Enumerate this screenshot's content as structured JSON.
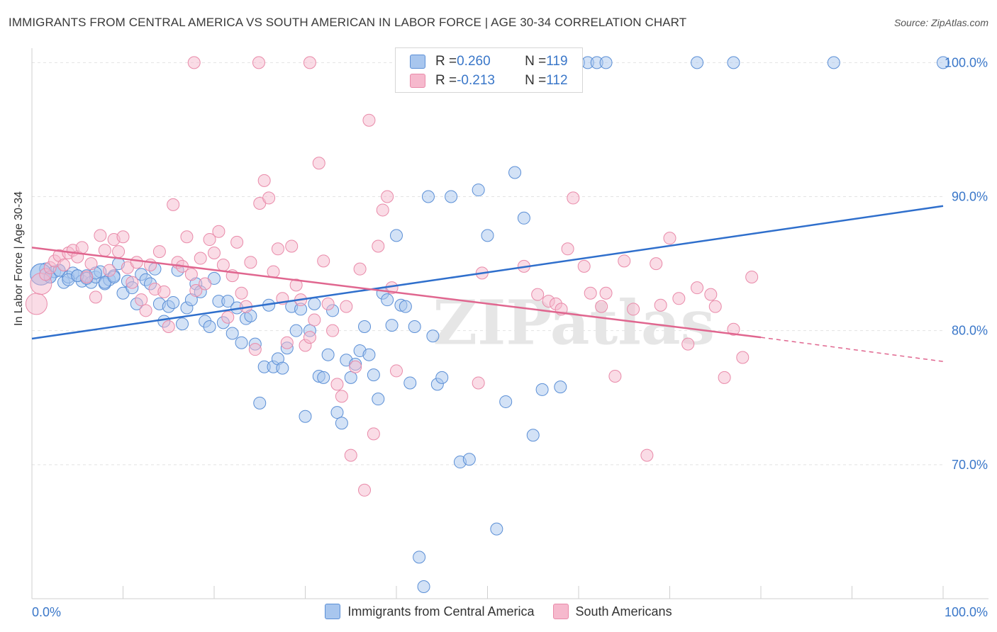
{
  "title": "IMMIGRANTS FROM CENTRAL AMERICA VS SOUTH AMERICAN IN LABOR FORCE | AGE 30-34 CORRELATION CHART",
  "source": "Source: ZipAtlas.com",
  "watermark": "ZIPatlas",
  "legend": {
    "series": [
      {
        "r_label": "R = ",
        "r_value": "0.260",
        "n_label": "N = ",
        "n_value": "119"
      },
      {
        "r_label": "R = ",
        "r_value": "-0.213",
        "n_label": "N = ",
        "n_value": "112"
      }
    ]
  },
  "bottom_legend": [
    "Immigrants from Central America",
    "South Americans"
  ],
  "colors": {
    "blue_fill": "#a8c6ee",
    "blue_stroke": "#5b8fd6",
    "blue_line": "#2f6fcc",
    "pink_fill": "#f6b9cd",
    "pink_stroke": "#e98aa9",
    "pink_line": "#e0668f",
    "axis_text": "#3a77c9",
    "grid": "#e3e3e3"
  },
  "chart_data": {
    "type": "scatter",
    "title": "IMMIGRANTS FROM CENTRAL AMERICA VS SOUTH AMERICAN IN LABOR FORCE | AGE 30-34 CORRELATION CHART",
    "ylabel": "In Labor Force | Age 30-34",
    "xlabel": "",
    "x_tick_labels": [
      "0.0%",
      "100.0%"
    ],
    "y_tick_labels": [
      "70.0%",
      "80.0%",
      "90.0%",
      "100.0%"
    ],
    "y_ticks": [
      70,
      80,
      90,
      100
    ],
    "xlim": [
      0,
      100
    ],
    "ylim": [
      60,
      101.5
    ],
    "grid": true,
    "legend_position": "top-center",
    "series": [
      {
        "name": "Immigrants from Central America",
        "color": "blue",
        "r": 0.26,
        "n": 119,
        "trend": {
          "x": [
            0,
            100
          ],
          "y": [
            79.4,
            89.3
          ]
        },
        "points": [
          [
            1,
            84.2
          ],
          [
            1.5,
            84.6
          ],
          [
            2,
            84.0
          ],
          [
            2.5,
            84.4
          ],
          [
            3,
            84.5
          ],
          [
            3.5,
            83.6
          ],
          [
            4,
            84.0
          ],
          [
            4.5,
            84.3
          ],
          [
            5,
            84.1
          ],
          [
            5.5,
            83.7
          ],
          [
            6,
            84.1
          ],
          [
            6.5,
            83.6
          ],
          [
            7,
            84.0
          ],
          [
            7.5,
            84.4
          ],
          [
            8,
            83.5
          ],
          [
            8.5,
            83.8
          ],
          [
            9,
            84.1
          ],
          [
            9.5,
            85.0
          ],
          [
            10,
            82.8
          ],
          [
            10.5,
            83.7
          ],
          [
            11,
            83.2
          ],
          [
            11.5,
            82.0
          ],
          [
            12,
            84.2
          ],
          [
            12.5,
            83.8
          ],
          [
            13,
            83.5
          ],
          [
            13.5,
            84.6
          ],
          [
            14,
            82.0
          ],
          [
            14.5,
            80.7
          ],
          [
            15,
            81.8
          ],
          [
            15.5,
            82.1
          ],
          [
            16,
            84.5
          ],
          [
            16.5,
            80.5
          ],
          [
            17,
            81.7
          ],
          [
            17.5,
            82.3
          ],
          [
            18,
            83.5
          ],
          [
            18.5,
            82.9
          ],
          [
            19,
            80.7
          ],
          [
            19.5,
            80.3
          ],
          [
            20,
            83.9
          ],
          [
            20.5,
            82.2
          ],
          [
            21,
            80.6
          ],
          [
            21.5,
            82.2
          ],
          [
            22,
            79.8
          ],
          [
            22.5,
            81.7
          ],
          [
            23,
            79.1
          ],
          [
            23.5,
            80.9
          ],
          [
            24,
            81.1
          ],
          [
            24.5,
            79.0
          ],
          [
            25,
            74.6
          ],
          [
            25.5,
            77.3
          ],
          [
            26,
            81.9
          ],
          [
            26.5,
            77.3
          ],
          [
            27,
            77.9
          ],
          [
            27.5,
            77.2
          ],
          [
            28,
            78.7
          ],
          [
            28.5,
            81.8
          ],
          [
            29,
            80.0
          ],
          [
            29.5,
            81.6
          ],
          [
            30,
            73.6
          ],
          [
            30.5,
            80.0
          ],
          [
            31,
            82.0
          ],
          [
            31.5,
            76.6
          ],
          [
            32,
            76.5
          ],
          [
            32.5,
            78.2
          ],
          [
            33,
            81.5
          ],
          [
            33.5,
            73.9
          ],
          [
            34,
            73.1
          ],
          [
            34.5,
            77.8
          ],
          [
            35,
            76.5
          ],
          [
            35.5,
            77.5
          ],
          [
            36,
            78.5
          ],
          [
            36.5,
            80.3
          ],
          [
            37,
            78.2
          ],
          [
            37.5,
            76.7
          ],
          [
            38,
            74.9
          ],
          [
            38.5,
            82.8
          ],
          [
            39,
            82.3
          ],
          [
            39.5,
            80.4
          ],
          [
            40,
            87.1
          ],
          [
            40.5,
            81.9
          ],
          [
            41,
            81.8
          ],
          [
            41.5,
            76.1
          ],
          [
            42,
            80.3
          ],
          [
            42.5,
            63.1
          ],
          [
            43,
            60.9
          ],
          [
            43.5,
            90.0
          ],
          [
            44,
            79.6
          ],
          [
            44.5,
            76.0
          ],
          [
            45,
            76.5
          ],
          [
            46,
            90.0
          ],
          [
            47,
            70.2
          ],
          [
            48,
            70.4
          ],
          [
            49,
            90.5
          ],
          [
            50,
            87.1
          ],
          [
            51,
            65.2
          ],
          [
            52,
            74.7
          ],
          [
            53,
            91.8
          ],
          [
            54,
            88.4
          ],
          [
            55,
            72.2
          ],
          [
            56,
            75.6
          ],
          [
            58,
            75.8
          ],
          [
            59,
            100.0
          ],
          [
            60,
            100.0
          ],
          [
            61,
            100.0
          ],
          [
            62,
            100.0
          ],
          [
            63,
            100.0
          ],
          [
            73,
            100.0
          ],
          [
            77,
            100.0
          ],
          [
            88,
            100.0
          ],
          [
            100,
            100.0
          ],
          [
            1,
            84.2
          ],
          [
            2,
            84.0
          ],
          [
            3,
            84.5
          ],
          [
            4,
            83.8
          ],
          [
            5,
            84.1
          ],
          [
            6,
            83.9
          ],
          [
            7,
            84.3
          ],
          [
            8,
            83.6
          ],
          [
            9,
            84.0
          ]
        ]
      },
      {
        "name": "South Americans",
        "color": "pink",
        "r": -0.213,
        "n": 112,
        "trend": {
          "x": [
            0,
            80
          ],
          "y": [
            86.2,
            79.5
          ],
          "dashed_to": [
            100,
            77.7
          ]
        },
        "points": [
          [
            0.5,
            82.0
          ],
          [
            1,
            83.5
          ],
          [
            1.5,
            84.2
          ],
          [
            2,
            84.7
          ],
          [
            2.5,
            85.2
          ],
          [
            3,
            85.6
          ],
          [
            3.5,
            84.9
          ],
          [
            4,
            85.8
          ],
          [
            4.5,
            86.0
          ],
          [
            5,
            85.5
          ],
          [
            5.5,
            86.2
          ],
          [
            6,
            84.0
          ],
          [
            6.5,
            85.0
          ],
          [
            7,
            82.5
          ],
          [
            7.5,
            87.1
          ],
          [
            8,
            86.0
          ],
          [
            8.5,
            84.5
          ],
          [
            9,
            86.8
          ],
          [
            9.5,
            85.9
          ],
          [
            10,
            87.0
          ],
          [
            10.5,
            84.7
          ],
          [
            11,
            83.6
          ],
          [
            11.5,
            85.1
          ],
          [
            12,
            82.3
          ],
          [
            12.5,
            81.5
          ],
          [
            13,
            84.9
          ],
          [
            13.5,
            83.1
          ],
          [
            14,
            85.9
          ],
          [
            14.5,
            82.9
          ],
          [
            15,
            80.3
          ],
          [
            15.5,
            89.4
          ],
          [
            16,
            85.1
          ],
          [
            16.5,
            84.8
          ],
          [
            17,
            87.0
          ],
          [
            17.5,
            84.2
          ],
          [
            18,
            83.0
          ],
          [
            18.5,
            85.4
          ],
          [
            19,
            83.5
          ],
          [
            19.5,
            86.8
          ],
          [
            20,
            85.8
          ],
          [
            20.5,
            87.4
          ],
          [
            21,
            84.9
          ],
          [
            21.5,
            81.0
          ],
          [
            22,
            84.1
          ],
          [
            22.5,
            86.6
          ],
          [
            23,
            82.8
          ],
          [
            23.5,
            81.8
          ],
          [
            24,
            85.1
          ],
          [
            24.5,
            78.6
          ],
          [
            25,
            89.5
          ],
          [
            25.5,
            91.2
          ],
          [
            26,
            89.9
          ],
          [
            26.5,
            84.4
          ],
          [
            27,
            86.1
          ],
          [
            27.5,
            82.4
          ],
          [
            28,
            79.1
          ],
          [
            28.5,
            86.3
          ],
          [
            29,
            83.4
          ],
          [
            29.5,
            82.3
          ],
          [
            30,
            78.9
          ],
          [
            30.5,
            79.5
          ],
          [
            31,
            80.8
          ],
          [
            31.5,
            92.5
          ],
          [
            32,
            85.2
          ],
          [
            32.5,
            82.0
          ],
          [
            33,
            80.0
          ],
          [
            33.5,
            76.0
          ],
          [
            34,
            75.1
          ],
          [
            34.5,
            81.8
          ],
          [
            35,
            70.7
          ],
          [
            35.5,
            77.3
          ],
          [
            36,
            84.6
          ],
          [
            36.5,
            68.1
          ],
          [
            37,
            95.7
          ],
          [
            37.5,
            72.3
          ],
          [
            38,
            86.3
          ],
          [
            38.5,
            89.0
          ],
          [
            39,
            90.0
          ],
          [
            39.5,
            83.2
          ],
          [
            40,
            77.0
          ],
          [
            17.8,
            100.0
          ],
          [
            24.9,
            100.0
          ],
          [
            30.5,
            100.0
          ],
          [
            49.0,
            76.1
          ],
          [
            49.4,
            84.3
          ],
          [
            54.0,
            84.8
          ],
          [
            55.5,
            82.7
          ],
          [
            56.7,
            82.2
          ],
          [
            57.5,
            82.0
          ],
          [
            58.1,
            81.6
          ],
          [
            58.8,
            86.1
          ],
          [
            59.4,
            89.9
          ],
          [
            60.6,
            84.8
          ],
          [
            61.3,
            82.8
          ],
          [
            62.5,
            81.8
          ],
          [
            63.0,
            82.8
          ],
          [
            64.0,
            76.6
          ],
          [
            65.0,
            85.2
          ],
          [
            66.0,
            81.6
          ],
          [
            67.5,
            70.7
          ],
          [
            68.5,
            85.0
          ],
          [
            69.0,
            81.9
          ],
          [
            70.0,
            86.9
          ],
          [
            71.0,
            82.4
          ],
          [
            72.0,
            79.0
          ],
          [
            73.0,
            83.2
          ],
          [
            74.5,
            82.7
          ],
          [
            75.0,
            81.8
          ],
          [
            76.0,
            76.5
          ],
          [
            77.0,
            80.1
          ],
          [
            78.0,
            78.0
          ],
          [
            79.0,
            84.0
          ]
        ]
      }
    ]
  }
}
